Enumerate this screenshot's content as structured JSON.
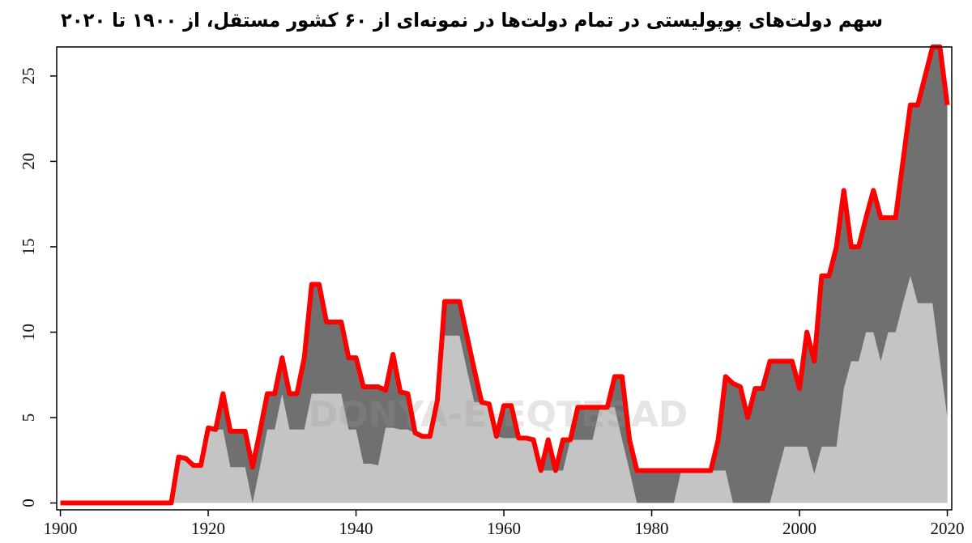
{
  "chart_data": {
    "type": "area",
    "title": "سهم دولت‌های پوپولیستی در تمام دولت‌ها در نمونه‌ای از ۶۰ کشور مستقل، از ۱۹۰۰ تا ۲۰۲۰",
    "watermark": "DONYA-E-EQTESAD",
    "x": [
      1900,
      1901,
      1902,
      1903,
      1904,
      1905,
      1906,
      1907,
      1908,
      1909,
      1910,
      1911,
      1912,
      1913,
      1914,
      1915,
      1916,
      1917,
      1918,
      1919,
      1920,
      1921,
      1922,
      1923,
      1924,
      1925,
      1926,
      1927,
      1928,
      1929,
      1930,
      1931,
      1932,
      1933,
      1934,
      1935,
      1936,
      1937,
      1938,
      1939,
      1940,
      1941,
      1942,
      1943,
      1944,
      1945,
      1946,
      1947,
      1948,
      1949,
      1950,
      1951,
      1952,
      1953,
      1954,
      1955,
      1956,
      1957,
      1958,
      1959,
      1960,
      1961,
      1962,
      1963,
      1964,
      1965,
      1966,
      1967,
      1968,
      1969,
      1970,
      1971,
      1972,
      1973,
      1974,
      1975,
      1976,
      1977,
      1978,
      1979,
      1980,
      1981,
      1982,
      1983,
      1984,
      1985,
      1986,
      1987,
      1988,
      1989,
      1990,
      1991,
      1992,
      1993,
      1994,
      1995,
      1996,
      1997,
      1998,
      1999,
      2000,
      2001,
      2002,
      2003,
      2004,
      2005,
      2006,
      2007,
      2008,
      2009,
      2010,
      2011,
      2012,
      2013,
      2014,
      2015,
      2016,
      2017,
      2018,
      2019,
      2020
    ],
    "series": [
      {
        "color": "#ff0000",
        "fill": "#707070",
        "values": [
          0,
          0,
          0,
          0,
          0,
          0,
          0,
          0,
          0,
          0,
          0,
          0,
          0,
          0,
          0,
          0,
          2.7,
          2.6,
          2.2,
          2.2,
          4.4,
          4.3,
          6.4,
          4.2,
          4.2,
          4.2,
          2.1,
          4.2,
          6.4,
          6.4,
          8.5,
          6.4,
          6.4,
          8.5,
          12.8,
          12.8,
          10.6,
          10.6,
          10.6,
          8.5,
          8.5,
          6.8,
          6.8,
          6.8,
          6.6,
          8.7,
          6.5,
          6.4,
          4.1,
          3.9,
          3.9,
          6.0,
          11.8,
          11.8,
          11.8,
          9.8,
          7.8,
          5.9,
          5.8,
          3.9,
          5.7,
          5.7,
          3.8,
          3.8,
          3.7,
          1.9,
          3.7,
          1.9,
          3.7,
          3.7,
          5.6,
          5.6,
          5.6,
          5.6,
          5.6,
          7.4,
          7.4,
          3.7,
          1.9,
          1.9,
          1.9,
          1.9,
          1.9,
          1.9,
          1.9,
          1.9,
          1.9,
          1.9,
          1.9,
          3.7,
          7.4,
          7.0,
          6.8,
          5.0,
          6.7,
          6.7,
          8.3,
          8.3,
          8.3,
          8.3,
          6.7,
          10.0,
          8.3,
          13.3,
          13.3,
          15.0,
          18.3,
          15.0,
          15.0,
          16.7,
          18.3,
          16.7,
          16.7,
          16.7,
          20.0,
          23.3,
          23.3,
          25.0,
          26.7,
          26.7,
          23.3
        ]
      },
      {
        "color": "#c4c4c4",
        "values": [
          0,
          0,
          0,
          0,
          0,
          0,
          0,
          0,
          0,
          0,
          0,
          0,
          0,
          0,
          0,
          0,
          2.7,
          2.6,
          2.2,
          2.2,
          4.4,
          4.3,
          4.3,
          2.1,
          2.1,
          2.1,
          0,
          2.1,
          4.3,
          4.3,
          6.4,
          4.3,
          4.3,
          4.3,
          6.4,
          6.4,
          6.4,
          6.4,
          6.4,
          4.3,
          4.3,
          2.3,
          2.3,
          2.2,
          4.4,
          4.4,
          4.3,
          4.3,
          4.1,
          3.9,
          3.9,
          6.0,
          9.8,
          9.8,
          9.8,
          7.8,
          5.9,
          5.9,
          5.8,
          3.9,
          3.8,
          3.8,
          3.8,
          3.8,
          3.7,
          1.9,
          1.9,
          1.9,
          1.9,
          3.7,
          3.7,
          3.7,
          3.7,
          5.6,
          5.6,
          5.6,
          3.7,
          1.9,
          0,
          0,
          0,
          0,
          0,
          0,
          1.9,
          1.9,
          1.9,
          1.9,
          1.9,
          1.9,
          1.9,
          0,
          0,
          0,
          0,
          0,
          0,
          1.7,
          3.3,
          3.3,
          3.3,
          3.3,
          1.7,
          3.3,
          3.3,
          3.3,
          6.7,
          8.3,
          8.3,
          10.0,
          10.0,
          8.3,
          10.0,
          10.0,
          11.7,
          13.3,
          11.7,
          11.7,
          11.7,
          8.3,
          5.0
        ]
      }
    ],
    "xlim": [
      1899.5,
      2020.6
    ],
    "ylim": [
      -0.4,
      26.7
    ],
    "xticks": [
      1900,
      1920,
      1940,
      1960,
      1980,
      2000,
      2020
    ],
    "yticks": [
      0,
      5,
      10,
      15,
      20,
      25
    ]
  }
}
